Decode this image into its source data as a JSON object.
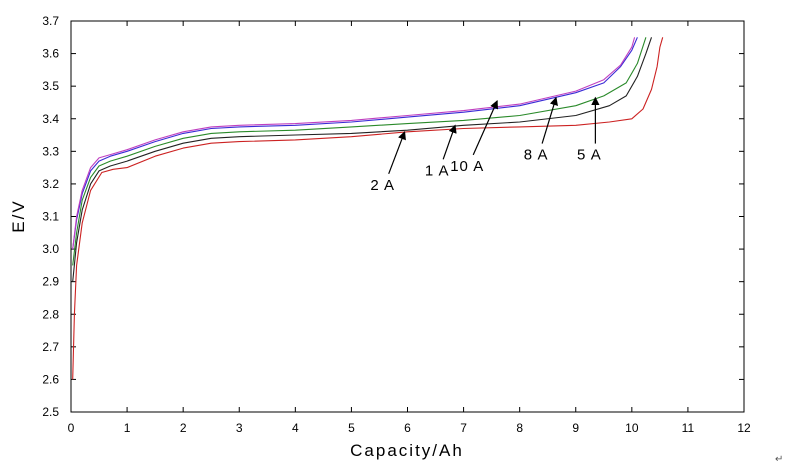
{
  "chart_data": {
    "type": "line",
    "title": "",
    "xlabel": "Capacity/Ah",
    "ylabel": "E/V",
    "xlim": [
      0,
      12
    ],
    "ylim": [
      2.5,
      3.7
    ],
    "grid": false,
    "legend": "none",
    "x_ticks": [
      "0",
      "1",
      "2",
      "3",
      "4",
      "5",
      "6",
      "7",
      "8",
      "9",
      "10",
      "11",
      "12"
    ],
    "y_ticks": [
      "2.5",
      "2.6",
      "2.7",
      "2.8",
      "2.9",
      "3.0",
      "3.1",
      "3.2",
      "3.3",
      "3.4",
      "3.5",
      "3.6",
      "3.7"
    ],
    "series": [
      {
        "name": "5 A",
        "color": "#cc2222",
        "points": [
          [
            0.03,
            2.6
          ],
          [
            0.06,
            2.8
          ],
          [
            0.1,
            2.95
          ],
          [
            0.2,
            3.08
          ],
          [
            0.35,
            3.18
          ],
          [
            0.55,
            3.235
          ],
          [
            0.75,
            3.245
          ],
          [
            1.0,
            3.25
          ],
          [
            1.5,
            3.285
          ],
          [
            2.0,
            3.31
          ],
          [
            2.5,
            3.325
          ],
          [
            3,
            3.33
          ],
          [
            4,
            3.335
          ],
          [
            5,
            3.345
          ],
          [
            6,
            3.36
          ],
          [
            7,
            3.37
          ],
          [
            8,
            3.375
          ],
          [
            9,
            3.38
          ],
          [
            9.6,
            3.39
          ],
          [
            10.0,
            3.4
          ],
          [
            10.2,
            3.43
          ],
          [
            10.35,
            3.49
          ],
          [
            10.45,
            3.56
          ],
          [
            10.5,
            3.62
          ],
          [
            10.55,
            3.65
          ]
        ]
      },
      {
        "name": "1 A",
        "color": "#222222",
        "points": [
          [
            0.03,
            2.9
          ],
          [
            0.1,
            3.02
          ],
          [
            0.2,
            3.12
          ],
          [
            0.35,
            3.2
          ],
          [
            0.5,
            3.24
          ],
          [
            0.7,
            3.255
          ],
          [
            1.0,
            3.27
          ],
          [
            1.5,
            3.3
          ],
          [
            2.0,
            3.325
          ],
          [
            2.5,
            3.34
          ],
          [
            3,
            3.345
          ],
          [
            4,
            3.35
          ],
          [
            5,
            3.355
          ],
          [
            6,
            3.365
          ],
          [
            7,
            3.38
          ],
          [
            8,
            3.39
          ],
          [
            9,
            3.41
          ],
          [
            9.6,
            3.44
          ],
          [
            9.9,
            3.47
          ],
          [
            10.1,
            3.53
          ],
          [
            10.25,
            3.6
          ],
          [
            10.35,
            3.65
          ]
        ]
      },
      {
        "name": "2 A",
        "color": "#2a8a2a",
        "points": [
          [
            0.03,
            2.95
          ],
          [
            0.1,
            3.05
          ],
          [
            0.2,
            3.15
          ],
          [
            0.35,
            3.22
          ],
          [
            0.5,
            3.255
          ],
          [
            0.7,
            3.27
          ],
          [
            1.0,
            3.285
          ],
          [
            1.5,
            3.315
          ],
          [
            2.0,
            3.34
          ],
          [
            2.5,
            3.355
          ],
          [
            3,
            3.36
          ],
          [
            4,
            3.365
          ],
          [
            5,
            3.375
          ],
          [
            6,
            3.385
          ],
          [
            7,
            3.395
          ],
          [
            8,
            3.41
          ],
          [
            9,
            3.44
          ],
          [
            9.5,
            3.47
          ],
          [
            9.9,
            3.51
          ],
          [
            10.1,
            3.57
          ],
          [
            10.25,
            3.65
          ]
        ]
      },
      {
        "name": "8 A",
        "color": "#3a2ad6",
        "points": [
          [
            0.03,
            3.0
          ],
          [
            0.1,
            3.09
          ],
          [
            0.2,
            3.17
          ],
          [
            0.35,
            3.24
          ],
          [
            0.5,
            3.27
          ],
          [
            0.7,
            3.285
          ],
          [
            1.0,
            3.3
          ],
          [
            1.5,
            3.33
          ],
          [
            2.0,
            3.355
          ],
          [
            2.5,
            3.37
          ],
          [
            3,
            3.375
          ],
          [
            4,
            3.38
          ],
          [
            5,
            3.39
          ],
          [
            6,
            3.405
          ],
          [
            7,
            3.42
          ],
          [
            8,
            3.44
          ],
          [
            9,
            3.48
          ],
          [
            9.5,
            3.51
          ],
          [
            9.8,
            3.56
          ],
          [
            10.0,
            3.61
          ],
          [
            10.1,
            3.65
          ]
        ]
      },
      {
        "name": "10 A",
        "color": "#c040c0",
        "points": [
          [
            0.03,
            3.0
          ],
          [
            0.1,
            3.1
          ],
          [
            0.2,
            3.18
          ],
          [
            0.35,
            3.25
          ],
          [
            0.5,
            3.28
          ],
          [
            0.7,
            3.29
          ],
          [
            1.0,
            3.305
          ],
          [
            1.5,
            3.335
          ],
          [
            2.0,
            3.36
          ],
          [
            2.5,
            3.375
          ],
          [
            3,
            3.38
          ],
          [
            4,
            3.385
          ],
          [
            5,
            3.395
          ],
          [
            6,
            3.41
          ],
          [
            7,
            3.425
          ],
          [
            8,
            3.445
          ],
          [
            9,
            3.485
          ],
          [
            9.5,
            3.52
          ],
          [
            9.8,
            3.565
          ],
          [
            10.0,
            3.62
          ],
          [
            10.05,
            3.65
          ]
        ]
      }
    ],
    "annotations": [
      {
        "text": "2 A",
        "arrow_to": [
          5.95,
          3.36
        ]
      },
      {
        "text": "1 A",
        "arrow_to": [
          6.85,
          3.38
        ]
      },
      {
        "text": "10 A",
        "arrow_to": [
          7.6,
          3.455
        ]
      },
      {
        "text": "8 A",
        "arrow_to": [
          8.65,
          3.465
        ]
      },
      {
        "text": "5 A",
        "arrow_to": [
          9.35,
          3.465
        ]
      }
    ]
  },
  "corner_glyph": "↵"
}
